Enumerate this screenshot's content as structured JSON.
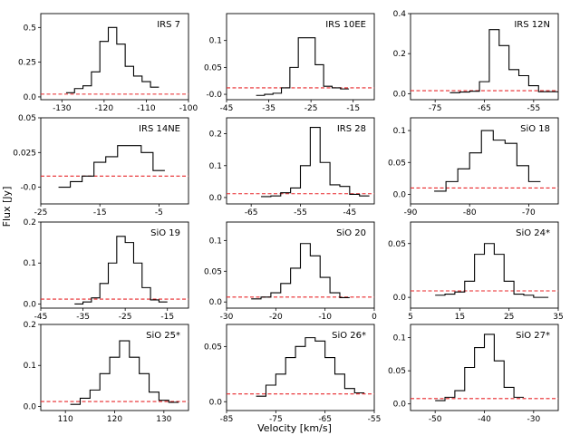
{
  "figure": {
    "ylabel": "Flux [Jy]",
    "xlabel": "Velocity [km/s]",
    "colors": {
      "spectrum": "#000000",
      "baseline": "#e8272a"
    }
  },
  "chart_data": [
    {
      "type": "line",
      "step": true,
      "label": "IRS 7",
      "xlim": [
        -135,
        -100
      ],
      "ylim": [
        -0.02,
        0.6
      ],
      "xticks": [
        -130,
        -120,
        -110,
        -100
      ],
      "xtick_labels": [
        "-130",
        "-120",
        "-110",
        "-100"
      ],
      "yticks": [
        0,
        0.25,
        0.5
      ],
      "ytick_labels": [
        "0.0",
        "0.25",
        "0.5"
      ],
      "baseline": 0.02,
      "edges": [
        -129,
        -127,
        -125,
        -123,
        -121,
        -119,
        -117,
        -115,
        -113,
        -111,
        -109,
        -107
      ],
      "values": [
        0.03,
        0.06,
        0.08,
        0.18,
        0.4,
        0.5,
        0.38,
        0.22,
        0.15,
        0.11,
        0.07
      ]
    },
    {
      "type": "line",
      "step": true,
      "label": "IRS 10EE",
      "xlim": [
        -45,
        -10
      ],
      "ylim": [
        -0.01,
        0.15
      ],
      "xticks": [
        -45,
        -35,
        -25,
        -15
      ],
      "xtick_labels": [
        "-45",
        "-35",
        "-25",
        "-15"
      ],
      "yticks": [
        0,
        0.05,
        0.1
      ],
      "ytick_labels": [
        "-0.0",
        "0.05",
        "0.1"
      ],
      "baseline": 0.012,
      "edges": [
        -38,
        -36,
        -34,
        -32,
        -30,
        -28,
        -26,
        -24,
        -22,
        -20,
        -18,
        -16
      ],
      "values": [
        -0.002,
        0.0,
        0.002,
        0.012,
        0.05,
        0.105,
        0.105,
        0.055,
        0.015,
        0.012,
        0.01
      ]
    },
    {
      "type": "line",
      "step": true,
      "label": "IRS 12N",
      "xlim": [
        -80,
        -50
      ],
      "ylim": [
        -0.03,
        0.4
      ],
      "xticks": [
        -75,
        -65,
        -55
      ],
      "xtick_labels": [
        "-75",
        "-65",
        "-55"
      ],
      "yticks": [
        0,
        0.2,
        0.4
      ],
      "ytick_labels": [
        "0.0",
        "0.2",
        "0.4"
      ],
      "baseline": 0.015,
      "edges": [
        -72,
        -70,
        -68,
        -66,
        -64,
        -62,
        -60,
        -58,
        -56,
        -54,
        -52,
        -50
      ],
      "values": [
        0.005,
        0.008,
        0.012,
        0.06,
        0.32,
        0.24,
        0.12,
        0.09,
        0.04,
        0.01,
        0.01
      ]
    },
    {
      "type": "line",
      "step": true,
      "label": "IRS 14NE",
      "xlim": [
        -25,
        0
      ],
      "ylim": [
        -0.012,
        0.05
      ],
      "xticks": [
        -25,
        -15,
        -5
      ],
      "xtick_labels": [
        "-25",
        "-15",
        "-5"
      ],
      "yticks": [
        0,
        0.025,
        0.05
      ],
      "ytick_labels": [
        "-0.0",
        "0.025",
        "0.05"
      ],
      "baseline": 0.008,
      "edges": [
        -22,
        -20,
        -18,
        -16,
        -14,
        -12,
        -10,
        -8,
        -6,
        -4
      ],
      "values": [
        0.0,
        0.004,
        0.008,
        0.018,
        0.022,
        0.03,
        0.03,
        0.025,
        0.012
      ]
    },
    {
      "type": "line",
      "step": true,
      "label": "IRS 28",
      "xlim": [
        -70,
        -40
      ],
      "ylim": [
        -0.02,
        0.25
      ],
      "xticks": [
        -65,
        -55,
        -45
      ],
      "xtick_labels": [
        "-65",
        "-55",
        "-45"
      ],
      "yticks": [
        0,
        0.1,
        0.2
      ],
      "ytick_labels": [
        "0.0",
        "0.1",
        "0.2"
      ],
      "baseline": 0.012,
      "edges": [
        -63,
        -61,
        -59,
        -57,
        -55,
        -53,
        -51,
        -49,
        -47,
        -45,
        -43,
        -41
      ],
      "values": [
        0.003,
        0.005,
        0.015,
        0.03,
        0.1,
        0.22,
        0.11,
        0.04,
        0.035,
        0.01,
        0.005
      ]
    },
    {
      "type": "line",
      "step": true,
      "label": "SiO 18",
      "xlim": [
        -90,
        -65
      ],
      "ylim": [
        -0.015,
        0.12
      ],
      "xticks": [
        -90,
        -80,
        -70
      ],
      "xtick_labels": [
        "-90",
        "-80",
        "-70"
      ],
      "yticks": [
        0,
        0.05,
        0.1
      ],
      "ytick_labels": [
        "0.0",
        "0.05",
        "0.1"
      ],
      "baseline": 0.01,
      "edges": [
        -86,
        -84,
        -82,
        -80,
        -78,
        -76,
        -74,
        -72,
        -70,
        -68
      ],
      "values": [
        0.005,
        0.02,
        0.04,
        0.065,
        0.1,
        0.085,
        0.08,
        0.045,
        0.02
      ]
    },
    {
      "type": "line",
      "step": true,
      "label": "SiO 19",
      "xlim": [
        -45,
        -10
      ],
      "ylim": [
        -0.01,
        0.2
      ],
      "xticks": [
        -45,
        -35,
        -25,
        -15
      ],
      "xtick_labels": [
        "-45",
        "-35",
        "-25",
        "-15"
      ],
      "yticks": [
        0,
        0.1,
        0.2
      ],
      "ytick_labels": [
        "0.0",
        "0.1",
        "0.2"
      ],
      "baseline": 0.012,
      "edges": [
        -37,
        -35,
        -33,
        -31,
        -29,
        -27,
        -25,
        -23,
        -21,
        -19,
        -17,
        -15
      ],
      "values": [
        0.0,
        0.005,
        0.015,
        0.05,
        0.1,
        0.165,
        0.15,
        0.1,
        0.04,
        0.01,
        0.005
      ]
    },
    {
      "type": "line",
      "step": true,
      "label": "SiO 20",
      "xlim": [
        -30,
        0
      ],
      "ylim": [
        -0.01,
        0.13
      ],
      "xticks": [
        -30,
        -20,
        -10,
        0
      ],
      "xtick_labels": [
        "-30",
        "-20",
        "-10",
        "0"
      ],
      "yticks": [
        0,
        0.05,
        0.1
      ],
      "ytick_labels": [
        "0.0",
        "0.05",
        "0.1"
      ],
      "baseline": 0.008,
      "edges": [
        -25,
        -23,
        -21,
        -19,
        -17,
        -15,
        -13,
        -11,
        -9,
        -7,
        -5
      ],
      "values": [
        0.005,
        0.008,
        0.015,
        0.03,
        0.055,
        0.095,
        0.075,
        0.04,
        0.015,
        0.007
      ]
    },
    {
      "type": "line",
      "step": true,
      "label": "SiO 24*",
      "xlim": [
        5,
        35
      ],
      "ylim": [
        -0.01,
        0.07
      ],
      "xticks": [
        5,
        15,
        25,
        35
      ],
      "xtick_labels": [
        "5",
        "15",
        "25",
        "35"
      ],
      "yticks": [
        0,
        0.05
      ],
      "ytick_labels": [
        "0.0",
        "0.05"
      ],
      "baseline": 0.006,
      "edges": [
        10,
        12,
        14,
        16,
        18,
        20,
        22,
        24,
        26,
        28,
        30,
        33
      ],
      "values": [
        0.002,
        0.003,
        0.005,
        0.015,
        0.04,
        0.05,
        0.04,
        0.015,
        0.003,
        0.002,
        0.0
      ]
    },
    {
      "type": "line",
      "step": true,
      "label": "SiO 25*",
      "xlim": [
        105,
        135
      ],
      "ylim": [
        -0.01,
        0.2
      ],
      "xticks": [
        110,
        120,
        130
      ],
      "xtick_labels": [
        "110",
        "120",
        "130"
      ],
      "yticks": [
        0,
        0.1,
        0.2
      ],
      "ytick_labels": [
        "0.0",
        "0.1",
        "0.2"
      ],
      "baseline": 0.012,
      "edges": [
        111,
        113,
        115,
        117,
        119,
        121,
        123,
        125,
        127,
        129,
        131,
        133
      ],
      "values": [
        0.005,
        0.02,
        0.04,
        0.08,
        0.12,
        0.16,
        0.12,
        0.08,
        0.035,
        0.015,
        0.01
      ]
    },
    {
      "type": "line",
      "step": true,
      "label": "SiO 26*",
      "xlim": [
        -85,
        -55
      ],
      "ylim": [
        -0.008,
        0.07
      ],
      "xticks": [
        -85,
        -75,
        -65,
        -55
      ],
      "xtick_labels": [
        "-85",
        "-75",
        "-65",
        "-55"
      ],
      "yticks": [
        0,
        0.05
      ],
      "ytick_labels": [
        "0.0",
        "0.05"
      ],
      "baseline": 0.007,
      "edges": [
        -79,
        -77,
        -75,
        -73,
        -71,
        -69,
        -67,
        -65,
        -63,
        -61,
        -59,
        -57
      ],
      "values": [
        0.005,
        0.015,
        0.025,
        0.04,
        0.05,
        0.058,
        0.055,
        0.04,
        0.025,
        0.012,
        0.008
      ]
    },
    {
      "type": "line",
      "step": true,
      "label": "SiO 27*",
      "xlim": [
        -55,
        -25
      ],
      "ylim": [
        -0.01,
        0.12
      ],
      "xticks": [
        -50,
        -40,
        -30
      ],
      "xtick_labels": [
        "-50",
        "-40",
        "-30"
      ],
      "yticks": [
        0,
        0.05,
        0.1
      ],
      "ytick_labels": [
        "0.0",
        "0.05",
        "0.1"
      ],
      "baseline": 0.008,
      "edges": [
        -50,
        -48,
        -46,
        -44,
        -42,
        -40,
        -38,
        -36,
        -34,
        -32
      ],
      "values": [
        0.005,
        0.01,
        0.02,
        0.055,
        0.085,
        0.105,
        0.065,
        0.025,
        0.01
      ]
    }
  ]
}
